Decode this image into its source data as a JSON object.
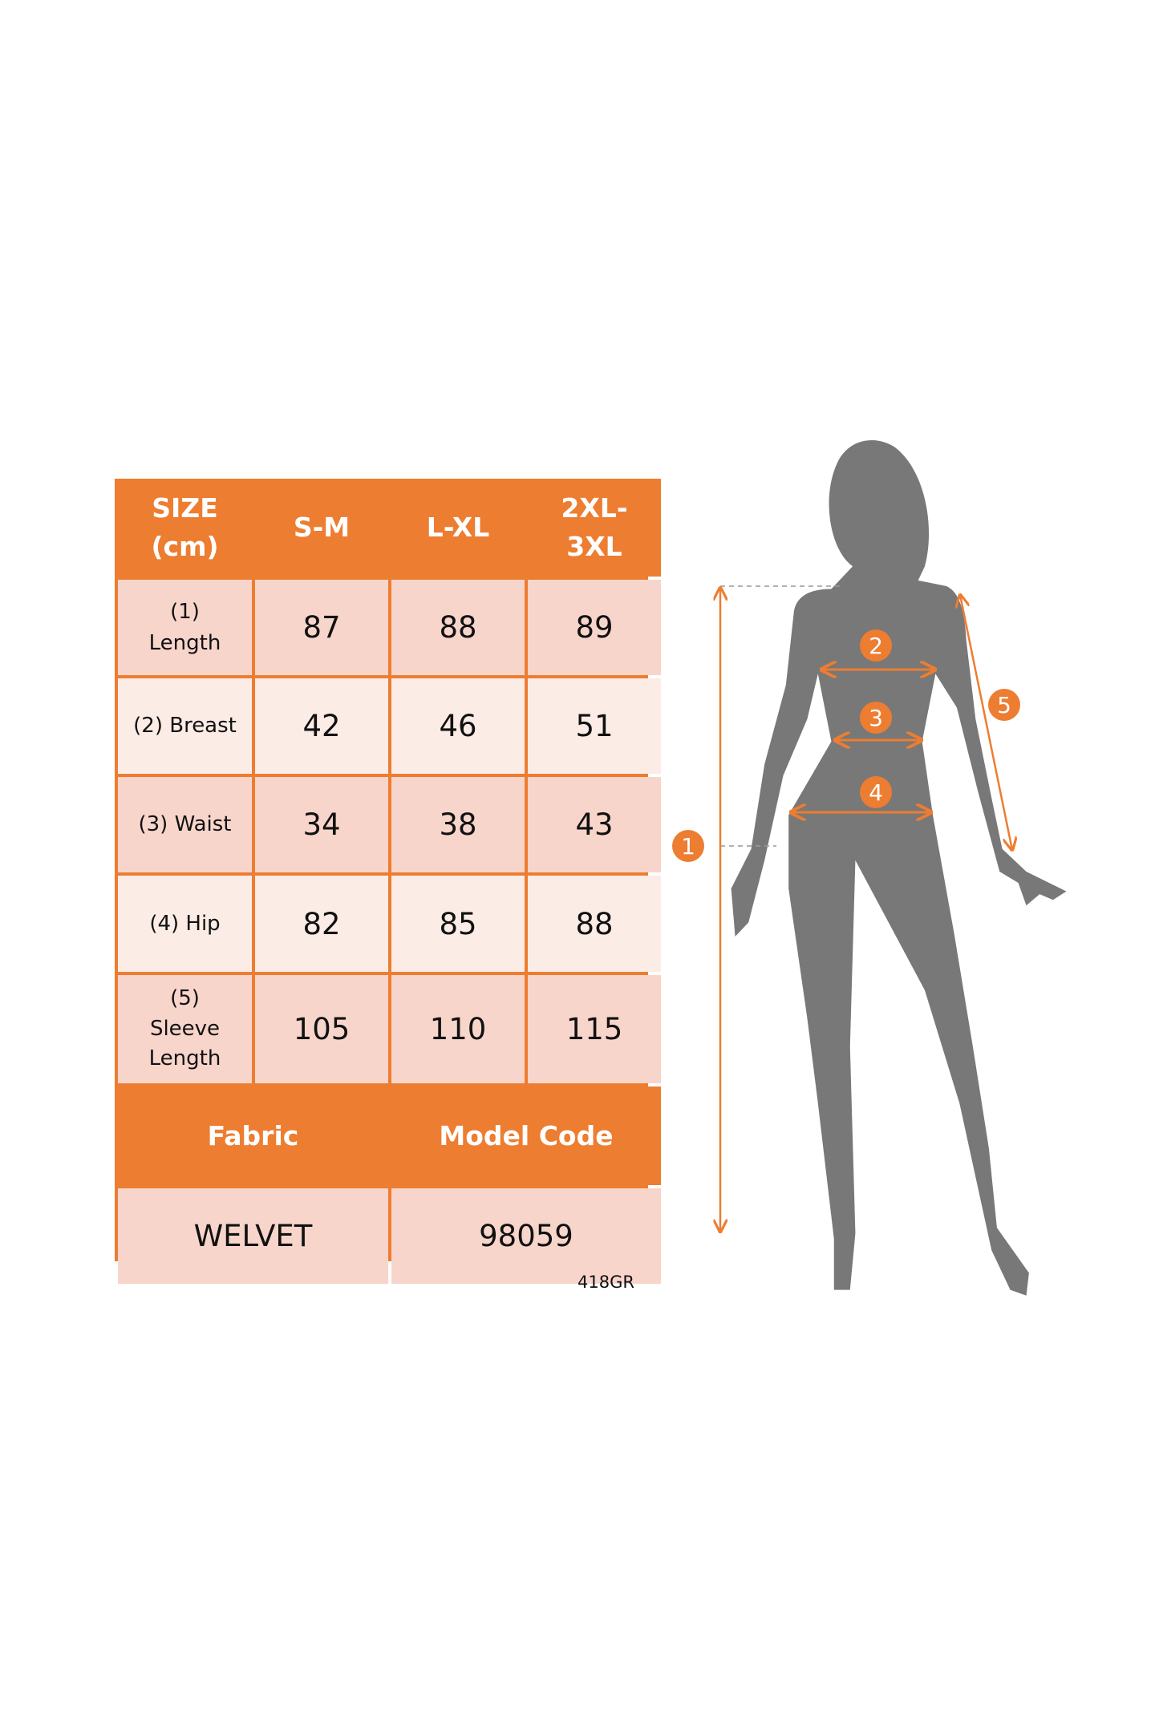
{
  "table": {
    "header": [
      "SIZE\n(cm)",
      "S-M",
      "L-XL",
      "2XL-\n3XL"
    ],
    "rows": [
      {
        "label": "(1)\nLength",
        "values": [
          "87",
          "88",
          "89"
        ]
      },
      {
        "label": "(2) Breast",
        "values": [
          "42",
          "46",
          "51"
        ]
      },
      {
        "label": "(3) Waist",
        "values": [
          "34",
          "38",
          "43"
        ]
      },
      {
        "label": "(4) Hip",
        "values": [
          "82",
          "85",
          "88"
        ]
      },
      {
        "label": "(5)\nSleeve\nLength",
        "values": [
          "105",
          "110",
          "115"
        ]
      }
    ],
    "footer_headers": [
      "Fabric",
      "Model Code"
    ],
    "footer_values": [
      "WELVET",
      "98059"
    ]
  },
  "code_note": "418GR",
  "figure": {
    "markers": [
      "1",
      "2",
      "3",
      "4",
      "5"
    ],
    "accent_color": "#ED7D31",
    "silhouette_color": "#787878"
  }
}
